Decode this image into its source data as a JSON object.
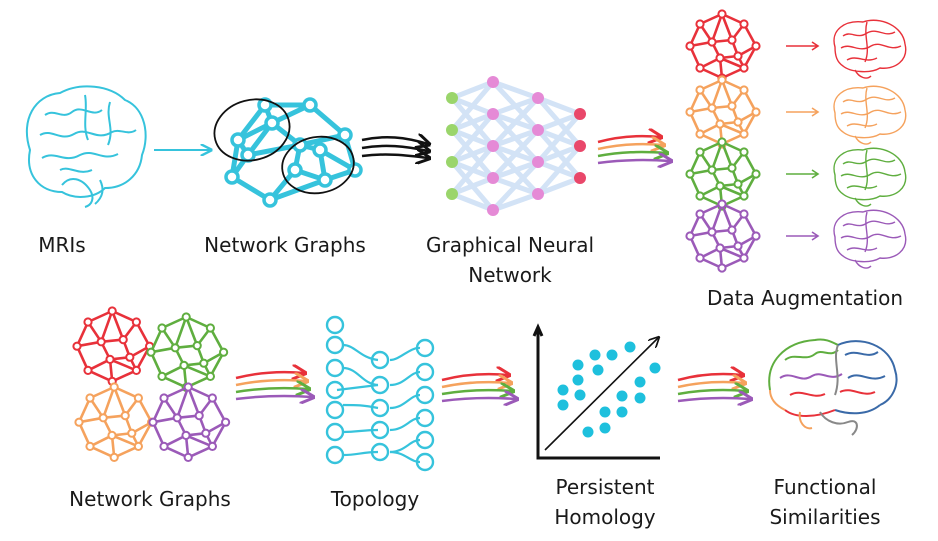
{
  "labels": {
    "mris": "MRIs",
    "network_graphs_top": "Network Graphs",
    "gnn_line1": "Graphical Neural",
    "gnn_line2": "Network",
    "data_augmentation": "Data Augmentation",
    "network_graphs_bottom": "Network Graphs",
    "topology": "Topology",
    "ph_line1": "Persistent",
    "ph_line2": "Homology",
    "fs_line1": "Functional",
    "fs_line2": "Similarities"
  },
  "colors": {
    "teal": "#36c3dc",
    "red": "#e8313a",
    "orange": "#f5a25d",
    "green": "#5fae3f",
    "purple": "#9b5ab8",
    "black": "#111111",
    "gnn_edge": "#cfe0f6",
    "gnn_input": "#9ad56b",
    "gnn_hidden": "#e58ad6",
    "gnn_output": "#e9476a"
  },
  "icons": [
    "brain-icon",
    "network-graph-icon",
    "neural-network-icon",
    "persistence-diagram-icon",
    "colored-brain-icon",
    "multi-arrow-icon"
  ]
}
